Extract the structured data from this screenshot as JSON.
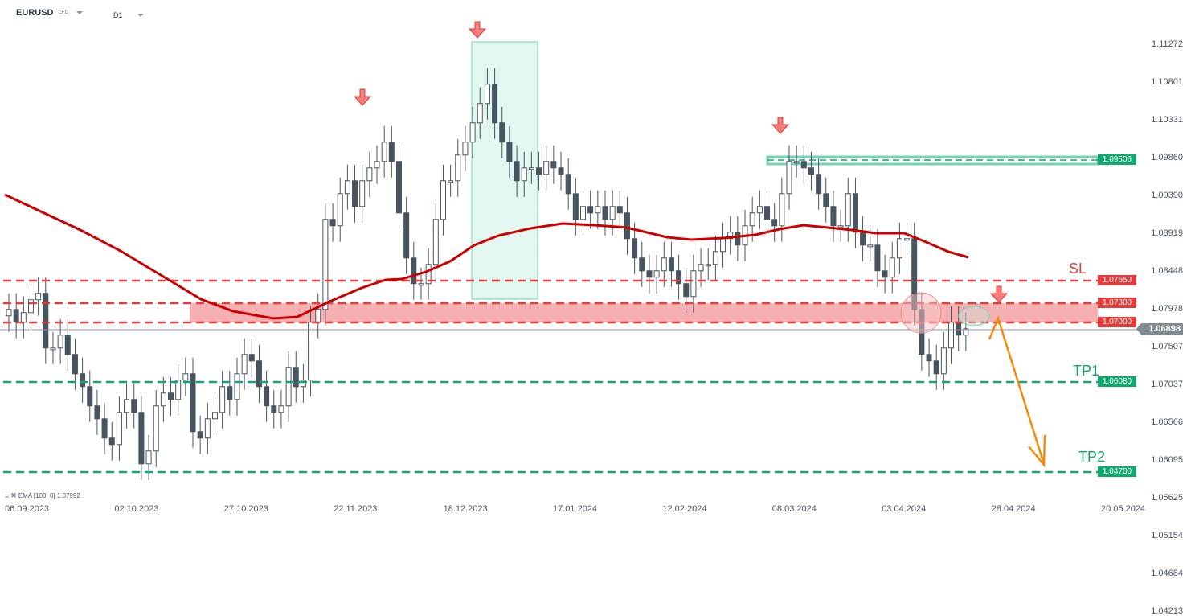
{
  "header": {
    "symbol": "EURUSD",
    "instrument_type": "CFD",
    "timeframe": "D1"
  },
  "indicator_legend": {
    "menu_icon": "≡",
    "close_icon": "✖",
    "text": "EMA [100, 0] 1.07992"
  },
  "price_axis": [
    "1.11272",
    "1.10801",
    "1.10331",
    "1.09860",
    "1.09390",
    "1.08919",
    "1.08448",
    "1.07978",
    "1.07507",
    "1.07037",
    "1.06566",
    "1.06095",
    "1.05625",
    "1.05154",
    "1.04684",
    "1.04213"
  ],
  "date_axis": [
    "06.09.2023",
    "02.10.2023",
    "27.10.2023",
    "22.11.2023",
    "18.12.2023",
    "17.01.2024",
    "12.02.2024",
    "08.03.2024",
    "03.04.2024",
    "28.04.2024",
    "20.05.2024"
  ],
  "current_price": "1.06898",
  "levels": {
    "sl": {
      "label": "SL",
      "price": "1.07650",
      "color": "#e53a3a"
    },
    "zone_top": {
      "price": "1.07300",
      "color": "#e53a3a"
    },
    "zone_bottom": {
      "price": "1.07000",
      "color": "#e53a3a"
    },
    "tp1": {
      "label": "TP1",
      "price": "1.06080",
      "color": "#0fa86e"
    },
    "tp2": {
      "label": "TP2",
      "price": "1.04700",
      "color": "#0fa86e"
    },
    "resistance": {
      "price": "1.09506",
      "color": "#0fa86e"
    }
  },
  "chart_data": {
    "type": "candlestick",
    "title": "EURUSD CFD D1",
    "xlabel": "",
    "ylabel": "",
    "ylim": [
      1.04213,
      1.11272
    ],
    "x_ticks": [
      "06.09.2023",
      "02.10.2023",
      "27.10.2023",
      "22.11.2023",
      "18.12.2023",
      "17.01.2024",
      "12.02.2024",
      "08.03.2024",
      "03.04.2024",
      "28.04.2024",
      "20.05.2024"
    ],
    "y_ticks": [
      1.11272,
      1.10801,
      1.10331,
      1.0986,
      1.0939,
      1.08919,
      1.08448,
      1.07978,
      1.07507,
      1.07037,
      1.06566,
      1.06095,
      1.05625,
      1.05154,
      1.04684,
      1.04213
    ],
    "indicator": {
      "name": "EMA",
      "params": [
        100,
        0
      ],
      "last_value": 1.07992,
      "color": "#cc0000"
    },
    "horizontal_levels": [
      {
        "name": "Resistance",
        "value": 1.09506,
        "color": "#0fa86e"
      },
      {
        "name": "SL",
        "value": 1.0765,
        "color": "#e53a3a"
      },
      {
        "name": "Zone top",
        "value": 1.073,
        "color": "#e53a3a"
      },
      {
        "name": "Zone bottom",
        "value": 1.07,
        "color": "#e53a3a"
      },
      {
        "name": "TP1",
        "value": 1.0608,
        "color": "#0fa86e"
      },
      {
        "name": "TP2",
        "value": 1.047,
        "color": "#0fa86e"
      }
    ],
    "last_price": 1.06898,
    "annotations": [
      "Down arrows at swing highs (~22.11.2023, ~27.12.2023, ~07.03.2024, projected ~24.04.2024)",
      "Highlighted consolidation box late Dec 2023 – early Jan 2024",
      "Projected path: up to 1.070–1.073 then down to TP2 1.04700"
    ],
    "closes_approx": [
      1.072,
      1.07,
      1.0715,
      1.0735,
      1.0745,
      1.066,
      1.066,
      1.068,
      1.065,
      1.062,
      1.06,
      1.057,
      1.055,
      1.052,
      1.051,
      1.056,
      1.058,
      1.056,
      1.048,
      1.05,
      1.057,
      1.059,
      1.058,
      1.061,
      1.062,
      1.053,
      1.052,
      1.055,
      1.056,
      1.06,
      1.058,
      1.062,
      1.065,
      1.064,
      1.06,
      1.057,
      1.056,
      1.057,
      1.063,
      1.06,
      1.061,
      1.07,
      1.072,
      1.086,
      1.085,
      1.09,
      1.092,
      1.088,
      1.092,
      1.094,
      1.095,
      1.098,
      1.095,
      1.087,
      1.08,
      1.076,
      1.076,
      1.079,
      1.086,
      1.092,
      1.092,
      1.096,
      1.098,
      1.101,
      1.104,
      1.107,
      1.101,
      1.098,
      1.095,
      1.092,
      1.094,
      1.094,
      1.093,
      1.095,
      1.094,
      1.093,
      1.09,
      1.086,
      1.088,
      1.087,
      1.088,
      1.086,
      1.088,
      1.087,
      1.083,
      1.08,
      1.078,
      1.077,
      1.078,
      1.08,
      1.078,
      1.076,
      1.074,
      1.078,
      1.079,
      1.079,
      1.081,
      1.083,
      1.084,
      1.082,
      1.085,
      1.087,
      1.088,
      1.086,
      1.085,
      1.09,
      1.095,
      1.095,
      1.094,
      1.093,
      1.09,
      1.088,
      1.085,
      1.085,
      1.09,
      1.084,
      1.082,
      1.082,
      1.078,
      1.077,
      1.08,
      1.083,
      1.083,
      1.072,
      1.065,
      1.064,
      1.062,
      1.066,
      1.07,
      1.068,
      1.069
    ]
  }
}
